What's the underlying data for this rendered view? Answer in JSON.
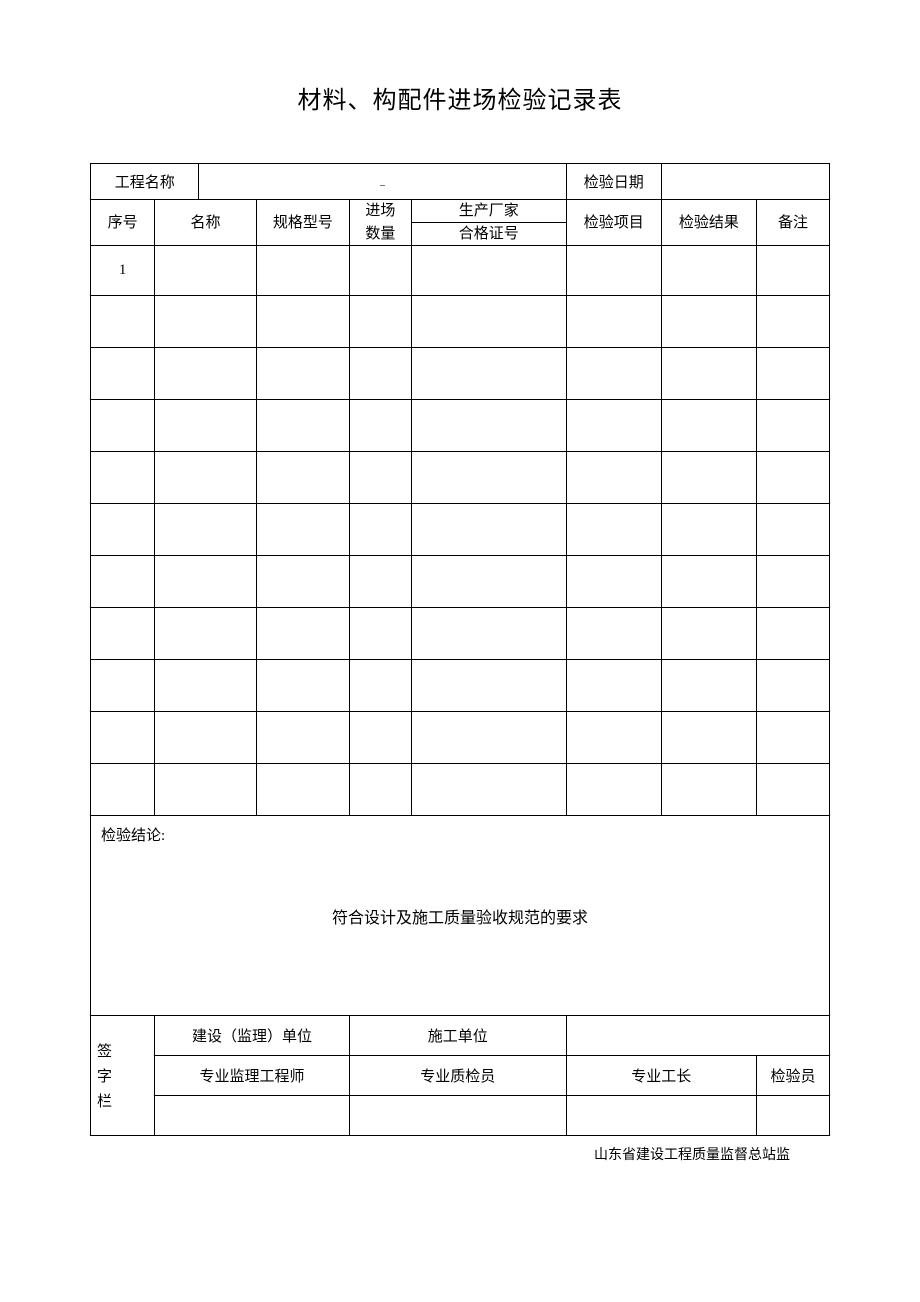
{
  "document": {
    "title": "材料、构配件进场检验记录表",
    "footer": "山东省建设工程质量监督总站监"
  },
  "header_fields": {
    "project_name_label": "工程名称",
    "project_name_value": "_",
    "inspection_date_label": "检验日期",
    "inspection_date_value": ""
  },
  "columns": {
    "seq": "序号",
    "name": "名称",
    "spec": "规格型号",
    "qty_line1": "进场",
    "qty_line2": "数量",
    "manufacturer": "生产厂家",
    "cert_no": "合格证号",
    "inspect_item": "检验项目",
    "inspect_result": "检验结果",
    "remark": "备注"
  },
  "col_widths": {
    "seq": "58",
    "name_a": "40",
    "name_b": "52",
    "spec": "84",
    "qty": "56",
    "mfr": "140",
    "item": "86",
    "result": "86",
    "remark": "66"
  },
  "rows": [
    {
      "seq": "1",
      "name": "",
      "spec": "",
      "qty": "",
      "mfr": "",
      "cert": "",
      "item": "",
      "result": "",
      "remark": ""
    },
    {
      "seq": "",
      "name": "",
      "spec": "",
      "qty": "",
      "mfr": "",
      "cert": "",
      "item": "",
      "result": "",
      "remark": ""
    },
    {
      "seq": "",
      "name": "",
      "spec": "",
      "qty": "",
      "mfr": "",
      "cert": "",
      "item": "",
      "result": "",
      "remark": ""
    },
    {
      "seq": "",
      "name": "",
      "spec": "",
      "qty": "",
      "mfr": "",
      "cert": "",
      "item": "",
      "result": "",
      "remark": ""
    },
    {
      "seq": "",
      "name": "",
      "spec": "",
      "qty": "",
      "mfr": "",
      "cert": "",
      "item": "",
      "result": "",
      "remark": ""
    },
    {
      "seq": "",
      "name": "",
      "spec": "",
      "qty": "",
      "mfr": "",
      "cert": "",
      "item": "",
      "result": "",
      "remark": ""
    },
    {
      "seq": "",
      "name": "",
      "spec": "",
      "qty": "",
      "mfr": "",
      "cert": "",
      "item": "",
      "result": "",
      "remark": ""
    },
    {
      "seq": "",
      "name": "",
      "spec": "",
      "qty": "",
      "mfr": "",
      "cert": "",
      "item": "",
      "result": "",
      "remark": ""
    },
    {
      "seq": "",
      "name": "",
      "spec": "",
      "qty": "",
      "mfr": "",
      "cert": "",
      "item": "",
      "result": "",
      "remark": ""
    },
    {
      "seq": "",
      "name": "",
      "spec": "",
      "qty": "",
      "mfr": "",
      "cert": "",
      "item": "",
      "result": "",
      "remark": ""
    },
    {
      "seq": "",
      "name": "",
      "spec": "",
      "qty": "",
      "mfr": "",
      "cert": "",
      "item": "",
      "result": "",
      "remark": ""
    }
  ],
  "conclusion": {
    "label": "检验结论:",
    "body": "符合设计及施工质量验收规范的要求"
  },
  "signatures": {
    "section_label": "签字栏",
    "construction_supervision_unit": "建设（监理）单位",
    "construction_unit": "施工单位",
    "supervision_engineer": "专业监理工程师",
    "quality_inspector": "专业质检员",
    "foreman": "专业工长",
    "inspector": "检验员"
  },
  "style": {
    "page_bg": "#ffffff",
    "text_color": "#000000",
    "border_color": "#000000",
    "title_fontsize": 24,
    "cell_fontsize": 15,
    "footer_fontsize": 14
  }
}
